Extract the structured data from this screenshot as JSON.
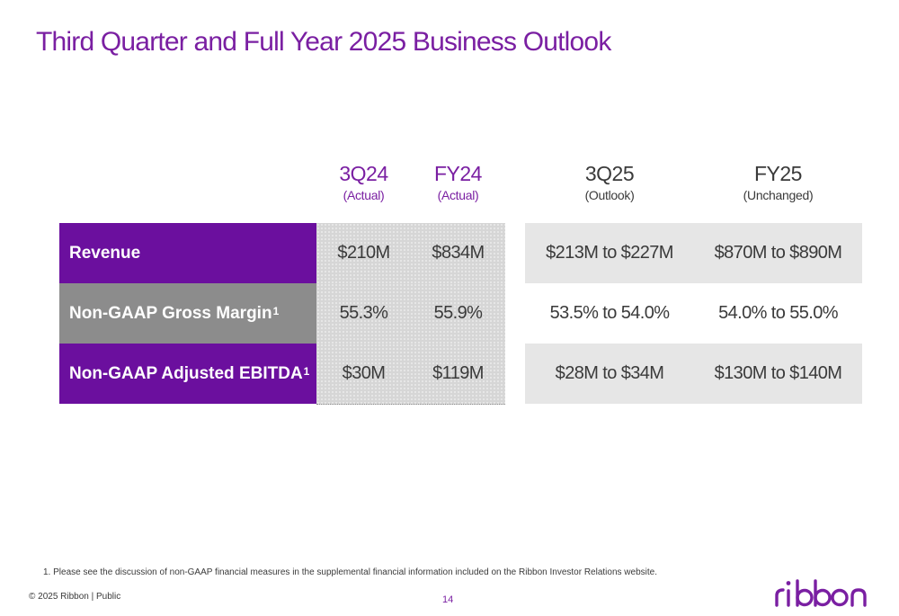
{
  "title": "Third Quarter and Full Year 2025 Business Outlook",
  "columns": [
    {
      "main": "3Q24",
      "sub": "(Actual)"
    },
    {
      "main": "FY24",
      "sub": "(Actual)"
    },
    {
      "main": "3Q25",
      "sub": "(Outlook)"
    },
    {
      "main": "FY25",
      "sub": "(Unchanged)"
    }
  ],
  "rows": [
    {
      "label": "Revenue",
      "sup": "",
      "values": [
        "$210M",
        "$834M",
        "$213M to $227M",
        "$870M to $890M"
      ]
    },
    {
      "label": "Non-GAAP Gross Margin",
      "sup": "1",
      "values": [
        "55.3%",
        "55.9%",
        "53.5% to 54.0%",
        "54.0% to 55.0%"
      ]
    },
    {
      "label": "Non-GAAP Adjusted EBITDA",
      "sup": "1",
      "values": [
        "$30M",
        "$119M",
        "$28M to $34M",
        "$130M to $140M"
      ]
    }
  ],
  "footnote": "1.  Please see the discussion of non-GAAP financial measures in the supplemental financial information included on the Ribbon Investor Relations website.",
  "footer": {
    "copyright": "© 2025 Ribbon | Public",
    "page_number": "14",
    "logo_text": "ribbon"
  },
  "colors": {
    "brand_purple": "#7a1fa2",
    "label_purple": "#6b0f9e",
    "label_gray": "#8c8c8c"
  }
}
